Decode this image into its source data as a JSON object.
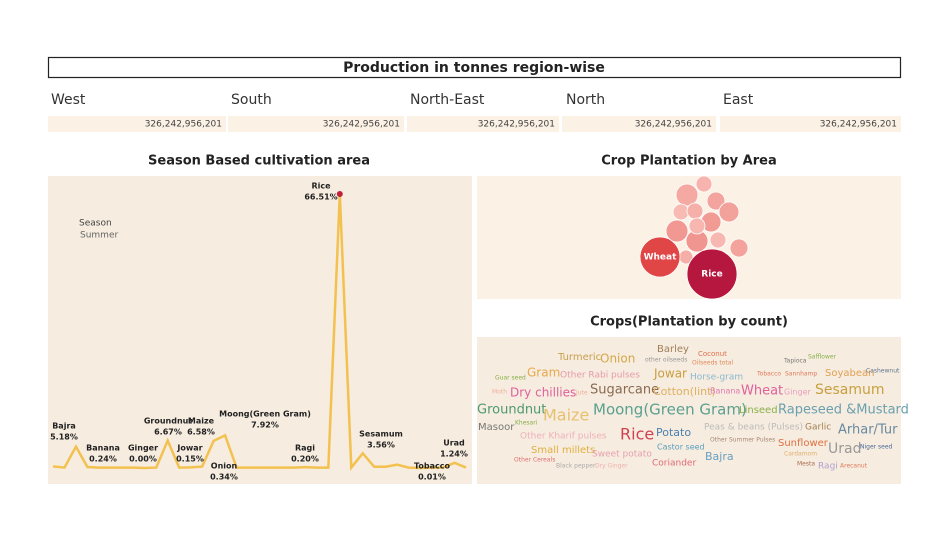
{
  "header": {
    "title": "Production in tonnes region-wise"
  },
  "regions": [
    {
      "name": "West",
      "value": "326,242,956,201"
    },
    {
      "name": "South",
      "value": "326,242,956,201"
    },
    {
      "name": "North-East",
      "value": "326,242,956,201"
    },
    {
      "name": "North",
      "value": "326,242,956,201"
    },
    {
      "name": "East",
      "value": "326,242,956,201"
    }
  ],
  "season_filter": {
    "label": "Season",
    "value": "Summer"
  },
  "chart_data": [
    {
      "type": "line",
      "title": "Season Based cultivation area",
      "color": "#f3c14f",
      "highlight_color": "#c0203a",
      "categories": [
        null,
        null,
        "Bajra",
        "Banana",
        null,
        null,
        null,
        null,
        "Ginger",
        null,
        "Groundnut",
        null,
        "Jowar",
        "Onion",
        "Maize",
        "Moong(Green Gram)",
        null,
        null,
        null,
        null,
        null,
        null,
        "Ragi",
        null,
        null,
        "Rice",
        null,
        "Sesamum",
        null,
        null,
        null,
        null,
        "Tobacco",
        null,
        null,
        "Urad",
        null
      ],
      "values": [
        0.4,
        0.1,
        5.18,
        0.24,
        0.1,
        0.1,
        0.1,
        0.1,
        0.0,
        0.1,
        6.67,
        0.1,
        0.15,
        0.34,
        6.58,
        7.92,
        0.1,
        0.1,
        0.1,
        0.1,
        0.1,
        0.1,
        0.2,
        0.1,
        0.1,
        66.51,
        0.1,
        3.56,
        0.3,
        0.3,
        0.8,
        0.1,
        0.01,
        0.1,
        0.1,
        1.24,
        0.1
      ],
      "value_labels": [
        null,
        null,
        "5.18%",
        "0.24%",
        null,
        null,
        null,
        null,
        "0.00%",
        null,
        "6.67%",
        null,
        "0.15%",
        "0.34%",
        "6.58%",
        "7.92%",
        null,
        null,
        null,
        null,
        null,
        null,
        "0.20%",
        null,
        null,
        "66.51%",
        null,
        "3.56%",
        null,
        null,
        null,
        null,
        "0.01%",
        null,
        null,
        "1.24%",
        null
      ],
      "ylim": [
        0,
        67
      ]
    },
    {
      "type": "bubble",
      "title": "Crop Plantation by Area",
      "categories": [
        null,
        null,
        null,
        null,
        null,
        null,
        null,
        null,
        null,
        null,
        null,
        null,
        null,
        null,
        "Wheat",
        "Rice"
      ],
      "values": [
        121,
        64,
        81,
        64,
        64,
        100,
        100,
        121,
        121,
        64,
        49,
        49,
        81,
        64,
        400,
        625
      ],
      "colors": [
        "#f5a9a3",
        "#f7b4ae",
        "#f4a49e",
        "#f8bbb4",
        "#f6b0aa",
        "#f29a94",
        "#f3a19b",
        "#f29893",
        "#f19590",
        "#f7b8b2",
        "#f6b4ae",
        "#f5aea8",
        "#f3a29c",
        "#f7b6b0",
        "#e14646",
        "#b5173f"
      ]
    }
  ],
  "crop_cloud": {
    "title": "Crops(Plantation by count)",
    "words": [
      {
        "text": "Barley",
        "color": "#a0805a"
      },
      {
        "text": "Coconut",
        "color": "#e0704c"
      },
      {
        "text": "Turmeric",
        "color": "#c8a050"
      },
      {
        "text": "Onion",
        "color": "#d4a84b"
      },
      {
        "text": "other oilseeds",
        "color": "#999999"
      },
      {
        "text": "Oilseeds total",
        "color": "#e08a5c"
      },
      {
        "text": "Tapioca",
        "color": "#777777"
      },
      {
        "text": "Safflower",
        "color": "#8ab04c"
      },
      {
        "text": "Gram",
        "color": "#e8a84c"
      },
      {
        "text": "Other Rabi pulses",
        "color": "#e89aa8"
      },
      {
        "text": "Jowar",
        "color": "#c8a040"
      },
      {
        "text": "Horse-gram",
        "color": "#8ab8d0"
      },
      {
        "text": "Tobacco",
        "color": "#e07a5c"
      },
      {
        "text": "Sannhamp",
        "color": "#e07a5c"
      },
      {
        "text": "Soyabean",
        "color": "#e0a050"
      },
      {
        "text": "Cashewnut",
        "color": "#607890"
      },
      {
        "text": "Guar seed",
        "color": "#8ab04c"
      },
      {
        "text": "Moth",
        "color": "#f0b0a0"
      },
      {
        "text": "Dry chillies",
        "color": "#e0609a"
      },
      {
        "text": "Jute",
        "color": "#f0b0a0"
      },
      {
        "text": "Sugarcane",
        "color": "#8a6a50"
      },
      {
        "text": "Cotton(lint)",
        "color": "#e0b060"
      },
      {
        "text": "Banana",
        "color": "#e07ab0"
      },
      {
        "text": "Wheat",
        "color": "#e0609a"
      },
      {
        "text": "Ginger",
        "color": "#e8a0c0"
      },
      {
        "text": "Sesamum",
        "color": "#c8a040"
      },
      {
        "text": "Groundnut",
        "color": "#4c9a70"
      },
      {
        "text": "Khesari",
        "color": "#8ab04c"
      },
      {
        "text": "Maize",
        "color": "#e8c070"
      },
      {
        "text": "Moong(Green Gram)",
        "color": "#5aa090"
      },
      {
        "text": "Linseed",
        "color": "#8ab04c"
      },
      {
        "text": "Rapeseed &Mustard",
        "color": "#6aa0b0"
      },
      {
        "text": "Masoor",
        "color": "#777777"
      },
      {
        "text": "Other Kharif pulses",
        "color": "#f0b0b8"
      },
      {
        "text": "Rice",
        "color": "#d04050"
      },
      {
        "text": "Potato",
        "color": "#4c80b0"
      },
      {
        "text": "Peas & beans (Pulses)",
        "color": "#bbbbbb"
      },
      {
        "text": "Garlic",
        "color": "#a08050"
      },
      {
        "text": "Arhar/Tur",
        "color": "#6a8aa0"
      },
      {
        "text": "Other Summer Pulses",
        "color": "#aa8877"
      },
      {
        "text": "Castor seed",
        "color": "#5aa0c0"
      },
      {
        "text": "Sunflower",
        "color": "#e07040"
      },
      {
        "text": "Urad",
        "color": "#999999"
      },
      {
        "text": "Niger seed",
        "color": "#4c6a9a"
      },
      {
        "text": "Small millets",
        "color": "#e0b040"
      },
      {
        "text": "Cardamom",
        "color": "#e0b070"
      },
      {
        "text": "Other Cereals",
        "color": "#e07070"
      },
      {
        "text": "Bajra",
        "color": "#6aa0c0"
      },
      {
        "text": "Sweet potato",
        "color": "#e8a0b0"
      },
      {
        "text": "Coriander",
        "color": "#e06a7a"
      },
      {
        "text": "Black pepper",
        "color": "#aaaaaa"
      },
      {
        "text": "Dry Ginger",
        "color": "#f0b0b0"
      },
      {
        "text": "Mesta",
        "color": "#aa6a50"
      },
      {
        "text": "Ragi",
        "color": "#b0a0d0"
      },
      {
        "text": "Arecanut",
        "color": "#e07a5c"
      }
    ]
  }
}
